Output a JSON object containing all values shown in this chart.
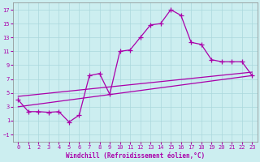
{
  "xlabel": "Windchill (Refroidissement éolien,°C)",
  "bg_color": "#cceef0",
  "grid_color": "#aad8dc",
  "line_color": "#aa00aa",
  "xlim": [
    -0.5,
    23.5
  ],
  "ylim": [
    -2.0,
    18.0
  ],
  "xticks": [
    0,
    1,
    2,
    3,
    4,
    5,
    6,
    7,
    8,
    9,
    10,
    11,
    12,
    13,
    14,
    15,
    16,
    17,
    18,
    19,
    20,
    21,
    22,
    23
  ],
  "yticks": [
    -1,
    1,
    3,
    5,
    7,
    9,
    11,
    13,
    15,
    17
  ],
  "line1_x": [
    0,
    1,
    2,
    3,
    4,
    5,
    6,
    7,
    8,
    9,
    10,
    11,
    12,
    13,
    14,
    15,
    16,
    17,
    18,
    19,
    20,
    21,
    22,
    23
  ],
  "line1_y": [
    4.0,
    2.3,
    2.3,
    2.2,
    2.3,
    0.8,
    1.8,
    7.5,
    7.8,
    4.8,
    11.0,
    11.2,
    13.0,
    14.8,
    15.0,
    17.0,
    16.2,
    12.3,
    12.0,
    9.8,
    9.5,
    9.5,
    9.5,
    7.5
  ],
  "line2_x": [
    0,
    23
  ],
  "line2_y": [
    3.0,
    7.5
  ],
  "line3_x": [
    0,
    23
  ],
  "line3_y": [
    4.5,
    8.0
  ],
  "spine_color": "#888888"
}
